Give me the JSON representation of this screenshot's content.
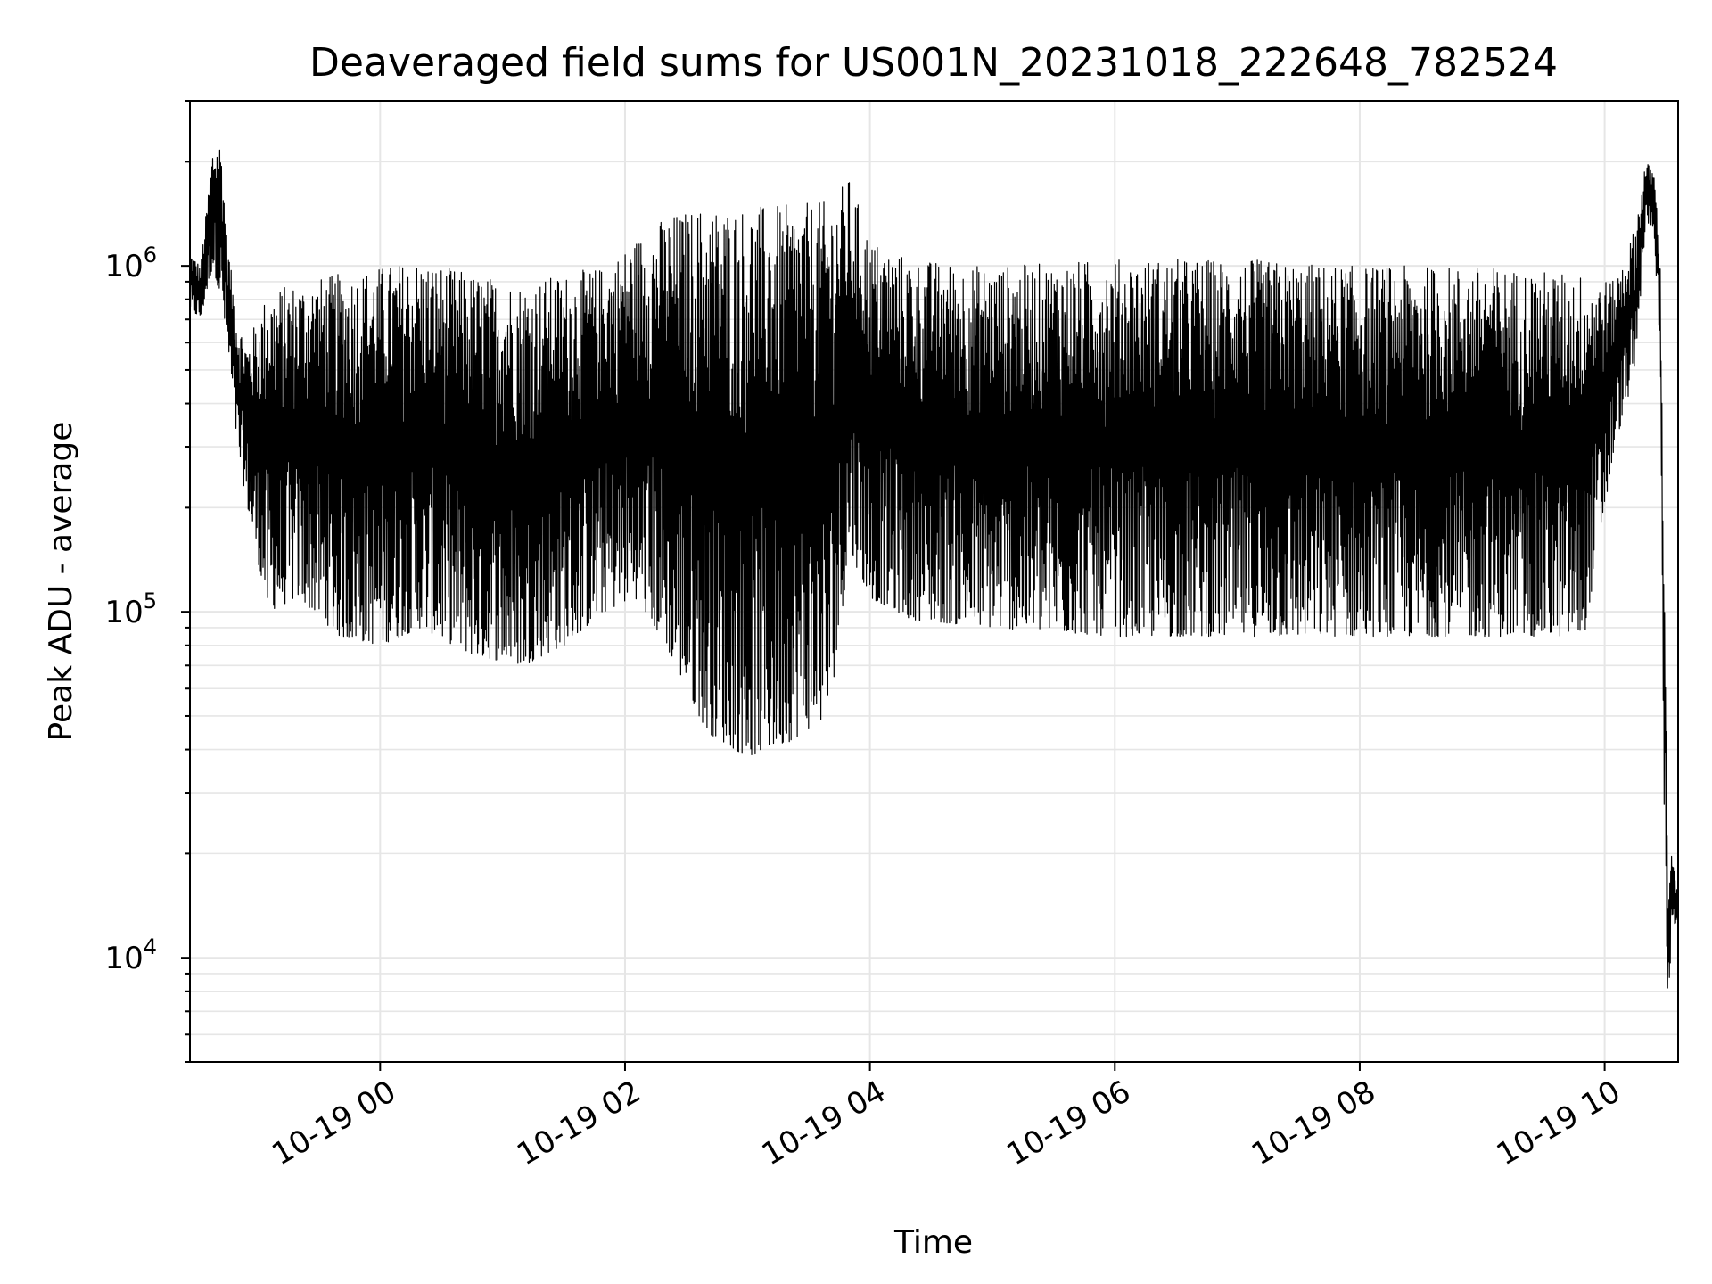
{
  "chart_data": {
    "type": "line",
    "title": "Deaveraged field sums for US001N_20231018_222648_782524",
    "xlabel": "Time",
    "ylabel": "Peak ADU - average",
    "yscale": "log",
    "ylim": [
      5000,
      3000000
    ],
    "xlim": [
      "2023-10-18 22:26:48",
      "2023-10-19 10:36:00"
    ],
    "grid": true,
    "line_color": "#000000",
    "grid_color": "#e6e6e6",
    "x_ticks": [
      {
        "time": "2023-10-19 00:00",
        "label": "10-19 00"
      },
      {
        "time": "2023-10-19 02:00",
        "label": "10-19 02"
      },
      {
        "time": "2023-10-19 04:00",
        "label": "10-19 04"
      },
      {
        "time": "2023-10-19 06:00",
        "label": "10-19 06"
      },
      {
        "time": "2023-10-19 08:00",
        "label": "10-19 08"
      },
      {
        "time": "2023-10-19 10:00",
        "label": "10-19 10"
      }
    ],
    "y_ticks": [
      {
        "value": 10000,
        "base": "10",
        "exp": "4"
      },
      {
        "value": 100000,
        "base": "10",
        "exp": "5"
      },
      {
        "value": 1000000,
        "base": "10",
        "exp": "6"
      }
    ],
    "envelope": {
      "x": [
        "2023-10-18 22:26:48",
        "2023-10-18 22:32",
        "2023-10-18 22:38",
        "2023-10-18 22:42",
        "2023-10-18 22:45",
        "2023-10-18 22:50",
        "2023-10-18 22:55",
        "2023-10-18 23:05",
        "2023-10-18 23:20",
        "2023-10-18 23:40",
        "2023-10-19 00:00",
        "2023-10-19 00:20",
        "2023-10-19 00:45",
        "2023-10-19 01:10",
        "2023-10-19 01:30",
        "2023-10-19 01:50",
        "2023-10-19 02:05",
        "2023-10-19 02:20",
        "2023-10-19 02:40",
        "2023-10-19 03:00",
        "2023-10-19 03:20",
        "2023-10-19 03:40",
        "2023-10-19 03:50",
        "2023-10-19 04:00",
        "2023-10-19 04:20",
        "2023-10-19 05:00",
        "2023-10-19 06:00",
        "2023-10-19 07:00",
        "2023-10-19 08:00",
        "2023-10-19 09:00",
        "2023-10-19 09:50",
        "2023-10-19 10:05",
        "2023-10-19 10:15",
        "2023-10-19 10:20",
        "2023-10-19 10:24",
        "2023-10-19 10:27",
        "2023-10-19 10:29",
        "2023-10-19 10:31",
        "2023-10-19 10:33",
        "2023-10-19 10:36"
      ],
      "upper": [
        1100000,
        1000000,
        2200000,
        2300000,
        1200000,
        700000,
        600000,
        850000,
        900000,
        950000,
        1000000,
        1050000,
        950000,
        900000,
        950000,
        1000000,
        1200000,
        1400000,
        1500000,
        1500000,
        1500000,
        1550000,
        1800000,
        1200000,
        1050000,
        1000000,
        1050000,
        1050000,
        1000000,
        1000000,
        950000,
        900000,
        1300000,
        2000000,
        1900000,
        1200000,
        200000,
        18000,
        20000,
        15000
      ],
      "lower": [
        750000,
        700000,
        1000000,
        800000,
        600000,
        300000,
        200000,
        100000,
        110000,
        85000,
        80000,
        90000,
        75000,
        70000,
        80000,
        100000,
        110000,
        80000,
        45000,
        38000,
        42000,
        50000,
        150000,
        110000,
        95000,
        90000,
        85000,
        85000,
        85000,
        85000,
        85000,
        300000,
        500000,
        1300000,
        1300000,
        600000,
        30000,
        7000,
        12000,
        13000
      ]
    }
  }
}
